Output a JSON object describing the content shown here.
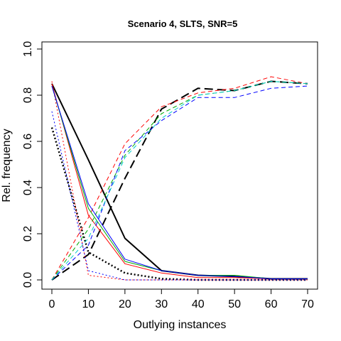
{
  "chart_data": {
    "type": "line",
    "title": "Scenario 4, SLTS, SNR=5",
    "xlabel": "Outlying instances",
    "ylabel": "Rel. frequency",
    "xlim": [
      0,
      70
    ],
    "ylim": [
      0,
      1
    ],
    "x": [
      0,
      10,
      20,
      30,
      40,
      50,
      60,
      70
    ],
    "xticks": [
      "0",
      "10",
      "20",
      "30",
      "40",
      "50",
      "60",
      "70"
    ],
    "yticks": [
      "0.0",
      "0.2",
      "0.4",
      "0.6",
      "0.8",
      "1.0"
    ],
    "grid": false,
    "legend": "none",
    "series": [
      {
        "color": "#000000",
        "dash": "solid",
        "width": 2,
        "values": [
          0.85,
          0.52,
          0.18,
          0.04,
          0.02,
          0.015,
          0.005,
          0.005
        ]
      },
      {
        "color": "#000000",
        "dash": "dotted",
        "width": 2.5,
        "values": [
          0.66,
          0.12,
          0.03,
          0.005,
          0.0,
          0.0,
          0.0,
          0.0
        ]
      },
      {
        "color": "#000000",
        "dash": "dashed-long",
        "width": 2,
        "values": [
          0.0,
          0.11,
          0.44,
          0.74,
          0.83,
          0.82,
          0.86,
          0.85
        ]
      },
      {
        "color": "#ff0000",
        "dash": "solid",
        "width": 1,
        "values": [
          0.85,
          0.28,
          0.07,
          0.03,
          0.01,
          0.01,
          0.005,
          0.005
        ]
      },
      {
        "color": "#ff0000",
        "dash": "dotted",
        "width": 1,
        "values": [
          0.86,
          0.02,
          0.0,
          0.0,
          0.0,
          0.0,
          0.0,
          0.0
        ]
      },
      {
        "color": "#ff0000",
        "dash": "dashed",
        "width": 1,
        "values": [
          0.0,
          0.27,
          0.59,
          0.75,
          0.81,
          0.83,
          0.88,
          0.85
        ]
      },
      {
        "color": "#00aa00",
        "dash": "solid",
        "width": 1,
        "values": [
          0.84,
          0.31,
          0.08,
          0.04,
          0.02,
          0.02,
          0.005,
          0.005
        ]
      },
      {
        "color": "#00aa00",
        "dash": "dashed",
        "width": 1,
        "values": [
          0.0,
          0.22,
          0.54,
          0.72,
          0.8,
          0.82,
          0.86,
          0.85
        ]
      },
      {
        "color": "#0000ff",
        "dash": "solid",
        "width": 1,
        "values": [
          0.84,
          0.33,
          0.09,
          0.04,
          0.02,
          0.015,
          0.005,
          0.005
        ]
      },
      {
        "color": "#0000ff",
        "dash": "dotted",
        "width": 1,
        "values": [
          0.73,
          0.04,
          0.0,
          0.0,
          0.0,
          0.0,
          0.0,
          0.0
        ]
      },
      {
        "color": "#0000ff",
        "dash": "dashed",
        "width": 1,
        "values": [
          0.0,
          0.15,
          0.56,
          0.69,
          0.79,
          0.79,
          0.83,
          0.84
        ]
      },
      {
        "color": "#00cccc",
        "dash": "dashed",
        "width": 1,
        "values": [
          0.0,
          0.18,
          0.53,
          0.7,
          0.8,
          0.82,
          0.86,
          0.85
        ]
      }
    ]
  }
}
